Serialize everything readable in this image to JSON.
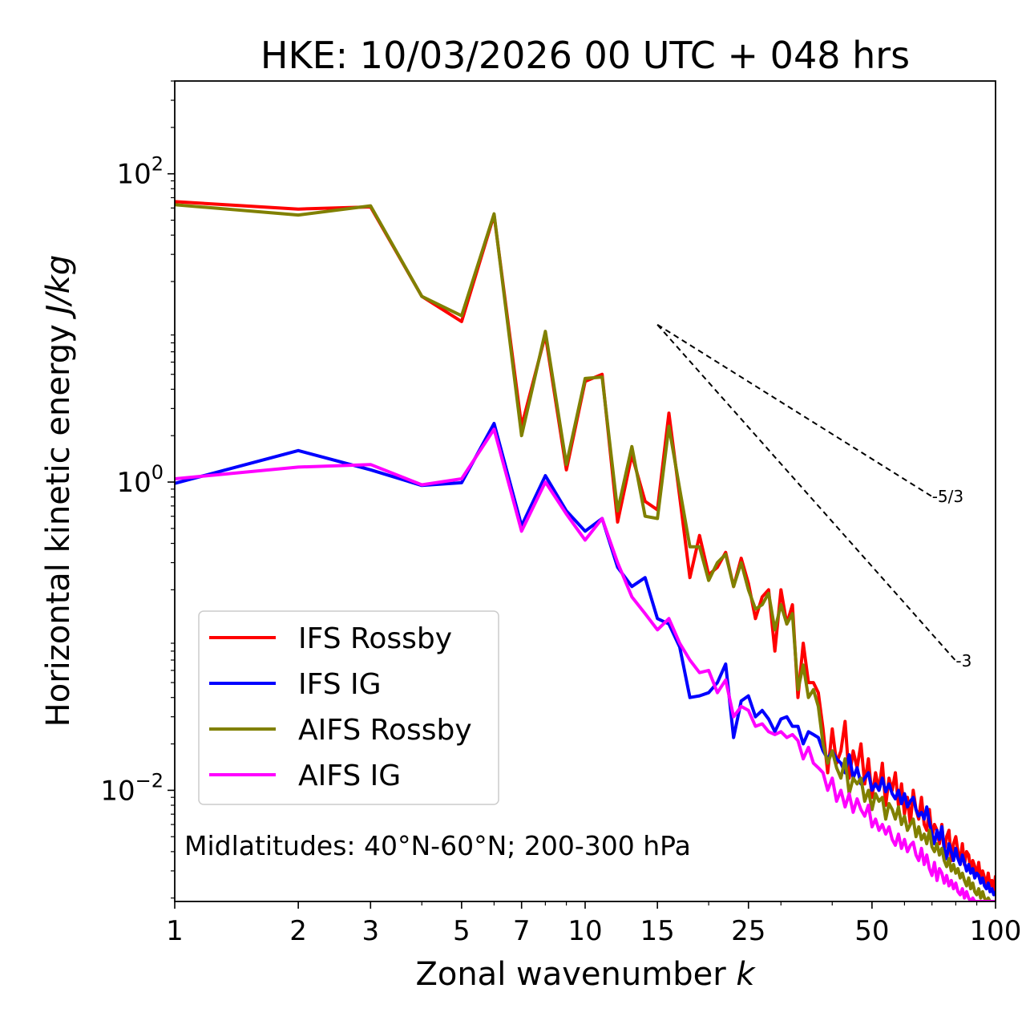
{
  "chart_data": {
    "type": "line",
    "title": "HKE: 10/03/2026 00 UTC + 048 hrs",
    "xlabel": "Zonal wavenumber",
    "xlabel_var": "k",
    "ylabel": "Horizontal kinetic energy",
    "ylabel_unit": "J/kg",
    "xscale": "log",
    "yscale": "log",
    "xlim": [
      1,
      100
    ],
    "ylim": [
      0.0019,
      400
    ],
    "x_ticks": [
      {
        "value": 1,
        "label": "1"
      },
      {
        "value": 2,
        "label": "2"
      },
      {
        "value": 3,
        "label": "3"
      },
      {
        "value": 5,
        "label": "5"
      },
      {
        "value": 7,
        "label": "7"
      },
      {
        "value": 10,
        "label": "10"
      },
      {
        "value": 15,
        "label": "15"
      },
      {
        "value": 25,
        "label": "25"
      },
      {
        "value": 50,
        "label": "50"
      },
      {
        "value": 100,
        "label": "100"
      }
    ],
    "y_ticks": [
      {
        "value": 100,
        "base": "10",
        "exp": "2"
      },
      {
        "value": 1,
        "base": "10",
        "exp": "0"
      },
      {
        "value": 0.01,
        "base": "10",
        "exp": "−2"
      }
    ],
    "annotation": "Midlatitudes: 40°N-60°N; 200-300 hPa",
    "legend_position": "lower-left",
    "series": [
      {
        "name": "IFS Rossby",
        "color": "#ff0000",
        "x": [
          1,
          2,
          3,
          4,
          5,
          6,
          7,
          8,
          9,
          10,
          11,
          12,
          13,
          14,
          15,
          16,
          17,
          18,
          19,
          20,
          21,
          22,
          23,
          24,
          25,
          26,
          27,
          28,
          29,
          30,
          31,
          32,
          33,
          34,
          35,
          36,
          37,
          38,
          39,
          40,
          41,
          42,
          43,
          44,
          45,
          46,
          47,
          48,
          49,
          50,
          51,
          52,
          53,
          54,
          55,
          56,
          57,
          58,
          59,
          60,
          61,
          62,
          63,
          64,
          65,
          66,
          67,
          68,
          69,
          70,
          71,
          72,
          73,
          74,
          75,
          76,
          77,
          78,
          79,
          80,
          81,
          82,
          83,
          84,
          85,
          86,
          87,
          88,
          89,
          90,
          91,
          92,
          93,
          94,
          95,
          96,
          97,
          98,
          99,
          100
        ],
        "values": [
          66,
          59,
          61,
          16,
          11,
          54,
          2.3,
          9,
          1.2,
          4.5,
          5,
          0.55,
          1.5,
          0.75,
          0.66,
          2.8,
          0.8,
          0.24,
          0.45,
          0.25,
          0.28,
          0.35,
          0.21,
          0.32,
          0.22,
          0.13,
          0.18,
          0.2,
          0.08,
          0.2,
          0.12,
          0.16,
          0.04,
          0.09,
          0.05,
          0.05,
          0.043,
          0.025,
          0.013,
          0.025,
          0.015,
          0.018,
          0.028,
          0.012,
          0.018,
          0.014,
          0.02,
          0.011,
          0.016,
          0.009,
          0.013,
          0.01,
          0.015,
          0.008,
          0.012,
          0.01,
          0.013,
          0.008,
          0.011,
          0.007,
          0.009,
          0.006,
          0.01,
          0.0075,
          0.0065,
          0.009,
          0.006,
          0.0055,
          0.0075,
          0.005,
          0.006,
          0.0055,
          0.0045,
          0.006,
          0.004,
          0.005,
          0.0055,
          0.0035,
          0.0045,
          0.005,
          0.004,
          0.0035,
          0.0045,
          0.0033,
          0.004,
          0.0038,
          0.003,
          0.0035,
          0.0032,
          0.0028,
          0.0034,
          0.0026,
          0.003,
          0.0027,
          0.0025,
          0.0029,
          0.0024,
          0.0026,
          0.0022,
          0.0028
        ]
      },
      {
        "name": "IFS IG",
        "color": "#0000ff",
        "x": [
          1,
          2,
          3,
          4,
          5,
          6,
          7,
          8,
          9,
          10,
          11,
          12,
          13,
          14,
          15,
          16,
          17,
          18,
          19,
          20,
          21,
          22,
          23,
          24,
          25,
          26,
          27,
          28,
          29,
          30,
          31,
          32,
          33,
          34,
          35,
          36,
          37,
          38,
          39,
          40,
          41,
          42,
          43,
          44,
          45,
          46,
          47,
          48,
          49,
          50,
          51,
          52,
          53,
          54,
          55,
          56,
          57,
          58,
          59,
          60,
          61,
          62,
          63,
          64,
          65,
          66,
          67,
          68,
          69,
          70,
          71,
          72,
          73,
          74,
          75,
          76,
          77,
          78,
          79,
          80,
          81,
          82,
          83,
          84,
          85,
          86,
          87,
          88,
          89,
          90,
          91,
          92,
          93,
          94,
          95,
          96,
          97,
          98,
          99,
          100
        ],
        "values": [
          0.98,
          1.6,
          1.2,
          0.95,
          0.99,
          2.4,
          0.52,
          1.1,
          0.65,
          0.48,
          0.58,
          0.28,
          0.21,
          0.24,
          0.13,
          0.12,
          0.085,
          0.04,
          0.041,
          0.043,
          0.05,
          0.066,
          0.022,
          0.038,
          0.041,
          0.03,
          0.033,
          0.029,
          0.024,
          0.029,
          0.03,
          0.026,
          0.026,
          0.02,
          0.024,
          0.023,
          0.022,
          0.018,
          0.016,
          0.018,
          0.016,
          0.015,
          0.013,
          0.017,
          0.012,
          0.014,
          0.011,
          0.012,
          0.013,
          0.01,
          0.011,
          0.01,
          0.012,
          0.0098,
          0.011,
          0.0095,
          0.0088,
          0.01,
          0.0082,
          0.0095,
          0.0078,
          0.0085,
          0.009,
          0.0075,
          0.0068,
          0.0072,
          0.0065,
          0.0078,
          0.0062,
          0.0052,
          0.0045,
          0.0055,
          0.0048,
          0.0058,
          0.0042,
          0.0036,
          0.0045,
          0.004,
          0.0035,
          0.0042,
          0.0036,
          0.0033,
          0.0038,
          0.0034,
          0.003,
          0.0033,
          0.0029,
          0.0031,
          0.0027,
          0.0029,
          0.0028,
          0.0025,
          0.0027,
          0.0024,
          0.0023,
          0.0025,
          0.0022,
          0.0023,
          0.0021,
          0.0022
        ]
      },
      {
        "name": "AIFS Rossby",
        "color": "#808000",
        "x": [
          1,
          2,
          3,
          4,
          5,
          6,
          7,
          8,
          9,
          10,
          11,
          12,
          13,
          14,
          15,
          16,
          17,
          18,
          19,
          20,
          21,
          22,
          23,
          24,
          25,
          26,
          27,
          28,
          29,
          30,
          31,
          32,
          33,
          34,
          35,
          36,
          37,
          38,
          39,
          40,
          41,
          42,
          43,
          44,
          45,
          46,
          47,
          48,
          49,
          50,
          51,
          52,
          53,
          54,
          55,
          56,
          57,
          58,
          59,
          60,
          61,
          62,
          63,
          64,
          65,
          66,
          67,
          68,
          69,
          70,
          71,
          72,
          73,
          74,
          75,
          76,
          77,
          78,
          79,
          80,
          81,
          82,
          83,
          84,
          85,
          86,
          87,
          88,
          89,
          90,
          91,
          92,
          93,
          94,
          95,
          96,
          97,
          98,
          99,
          100
        ],
        "values": [
          63,
          54,
          62,
          16,
          12,
          55,
          2,
          9.5,
          1.3,
          4.7,
          4.8,
          0.65,
          1.7,
          0.6,
          0.58,
          2.3,
          0.9,
          0.38,
          0.38,
          0.23,
          0.3,
          0.34,
          0.21,
          0.3,
          0.2,
          0.15,
          0.16,
          0.19,
          0.11,
          0.16,
          0.12,
          0.14,
          0.045,
          0.065,
          0.04,
          0.045,
          0.035,
          0.02,
          0.015,
          0.018,
          0.014,
          0.012,
          0.016,
          0.0095,
          0.012,
          0.011,
          0.012,
          0.0085,
          0.01,
          0.0075,
          0.0095,
          0.0085,
          0.009,
          0.0065,
          0.0082,
          0.0075,
          0.0065,
          0.0078,
          0.006,
          0.0068,
          0.0055,
          0.006,
          0.0065,
          0.005,
          0.0058,
          0.0048,
          0.0052,
          0.0045,
          0.0055,
          0.0043,
          0.004,
          0.0045,
          0.0038,
          0.0042,
          0.0035,
          0.0032,
          0.0036,
          0.003,
          0.0033,
          0.0029,
          0.0031,
          0.0027,
          0.0029,
          0.0026,
          0.0024,
          0.0027,
          0.0023,
          0.0025,
          0.0022,
          0.0021,
          0.0023,
          0.002,
          0.0022,
          0.002,
          0.0019,
          0.002,
          0.0019,
          0.0019,
          0.0019,
          0.0019
        ]
      },
      {
        "name": "AIFS IG",
        "color": "#ff00ff",
        "x": [
          1,
          2,
          3,
          4,
          5,
          6,
          7,
          8,
          9,
          10,
          11,
          12,
          13,
          14,
          15,
          16,
          17,
          18,
          19,
          20,
          21,
          22,
          23,
          24,
          25,
          26,
          27,
          28,
          29,
          30,
          31,
          32,
          33,
          34,
          35,
          36,
          37,
          38,
          39,
          40,
          41,
          42,
          43,
          44,
          45,
          46,
          47,
          48,
          49,
          50,
          51,
          52,
          53,
          54,
          55,
          56,
          57,
          58,
          59,
          60,
          61,
          62,
          63,
          64,
          65,
          66,
          67,
          68,
          69,
          70,
          71,
          72,
          73,
          74,
          75,
          76,
          77,
          78,
          79,
          80,
          81,
          82,
          83,
          84,
          85,
          86,
          87,
          88,
          89,
          90,
          91,
          92,
          93,
          94,
          95,
          96,
          97,
          98,
          99,
          100
        ],
        "values": [
          1.05,
          1.25,
          1.3,
          0.96,
          1.05,
          2.2,
          0.48,
          1.0,
          0.62,
          0.42,
          0.58,
          0.3,
          0.18,
          0.14,
          0.11,
          0.13,
          0.09,
          0.07,
          0.058,
          0.06,
          0.043,
          0.052,
          0.03,
          0.035,
          0.033,
          0.026,
          0.027,
          0.024,
          0.023,
          0.024,
          0.022,
          0.023,
          0.021,
          0.016,
          0.019,
          0.015,
          0.014,
          0.013,
          0.01,
          0.012,
          0.0085,
          0.01,
          0.0078,
          0.0095,
          0.0072,
          0.0088,
          0.0075,
          0.0068,
          0.008,
          0.0058,
          0.0065,
          0.0055,
          0.006,
          0.0052,
          0.0058,
          0.0048,
          0.0044,
          0.0052,
          0.0042,
          0.0048,
          0.004,
          0.0044,
          0.0046,
          0.0038,
          0.0035,
          0.0042,
          0.0033,
          0.0038,
          0.0031,
          0.0028,
          0.0034,
          0.0026,
          0.0031,
          0.0029,
          0.0025,
          0.0028,
          0.0024,
          0.0026,
          0.0023,
          0.0025,
          0.0022,
          0.0021,
          0.0023,
          0.002,
          0.0022,
          0.002,
          0.0019,
          0.002,
          0.0019,
          0.0019,
          0.0019,
          0.0019,
          0.0019,
          0.0019,
          0.0019,
          0.0019,
          0.0019,
          0.0019,
          0.0019,
          0.0019
        ]
      }
    ],
    "reference_slopes": [
      {
        "label": "-5/3",
        "slope": -1.6667,
        "x_start": 15,
        "x_end": 70,
        "y_start": 10.5
      },
      {
        "label": "-3",
        "slope": -3,
        "x_start": 15,
        "x_end": 80,
        "y_start": 10.5
      }
    ]
  }
}
